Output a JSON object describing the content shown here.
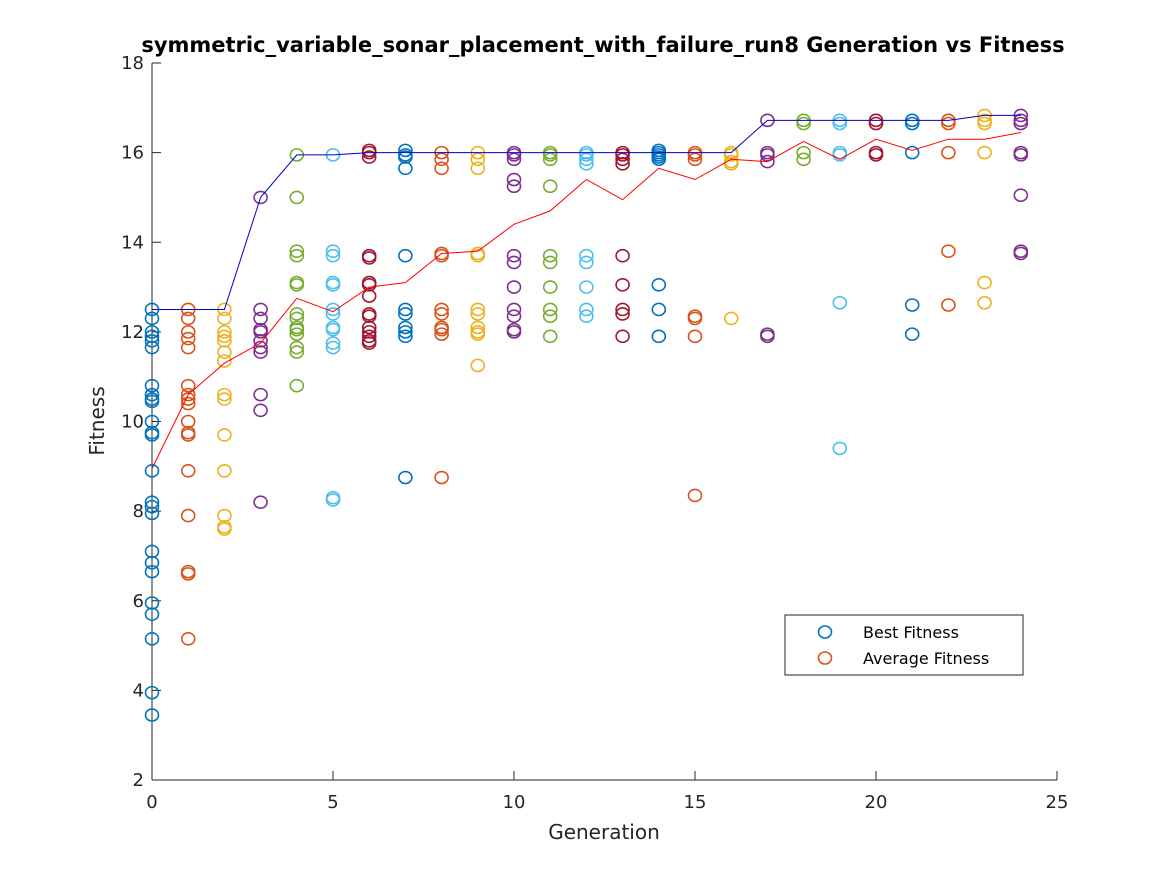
{
  "chart_data": {
    "type": "scatter",
    "title": "symmetric_variable_sonar_placement_with_failure_run8 Generation vs Fitness",
    "xlabel": "Generation",
    "ylabel": "Fitness",
    "xlim": [
      0,
      25
    ],
    "ylim": [
      2,
      18
    ],
    "xticks": [
      0,
      5,
      10,
      15,
      20,
      25
    ],
    "yticks": [
      2,
      4,
      6,
      8,
      10,
      12,
      14,
      16,
      18
    ],
    "grid": false,
    "legend_position": "bottom-right",
    "legend": [
      {
        "label": "Best Fitness",
        "color": "#0072BD"
      },
      {
        "label": "Average Fitness",
        "color": "#D95319"
      }
    ],
    "point_color_cycle": [
      "#0072BD",
      "#D95319",
      "#EDB120",
      "#7E2F8E",
      "#77AC30",
      "#4DBEEE",
      "#A2142F"
    ],
    "best_line": {
      "color": "#0000CC",
      "x": [
        0,
        1,
        2,
        3,
        4,
        5,
        6,
        7,
        8,
        9,
        10,
        11,
        12,
        13,
        14,
        15,
        16,
        17,
        18,
        19,
        20,
        21,
        22,
        23,
        24
      ],
      "y": [
        12.5,
        12.5,
        12.5,
        15.0,
        15.95,
        15.95,
        16.0,
        16.0,
        16.0,
        16.0,
        16.0,
        16.0,
        16.0,
        16.0,
        16.0,
        16.0,
        16.0,
        16.72,
        16.72,
        16.72,
        16.72,
        16.72,
        16.72,
        16.83,
        16.83
      ]
    },
    "average_line": {
      "color": "#FF0000",
      "x": [
        0,
        1,
        2,
        3,
        4,
        5,
        6,
        7,
        8,
        9,
        10,
        11,
        12,
        13,
        14,
        15,
        16,
        17,
        18,
        19,
        20,
        21,
        22,
        23,
        24
      ],
      "y": [
        8.95,
        10.6,
        11.3,
        11.75,
        12.75,
        12.45,
        13.0,
        13.1,
        13.75,
        13.8,
        14.4,
        14.7,
        15.4,
        14.95,
        15.65,
        15.4,
        15.85,
        15.8,
        16.25,
        15.85,
        16.3,
        16.05,
        16.3,
        16.3,
        16.45
      ]
    },
    "population": [
      {
        "generation": 0,
        "fitness": [
          12.5,
          12.3,
          12.0,
          11.9,
          11.8,
          11.65,
          10.8,
          10.6,
          10.5,
          10.45,
          10.0,
          9.75,
          9.7,
          8.9,
          8.2,
          8.1,
          7.95,
          7.1,
          6.85,
          6.65,
          5.95,
          5.7,
          5.15,
          3.95,
          3.45
        ]
      },
      {
        "generation": 1,
        "fitness": [
          12.5,
          12.3,
          12.0,
          11.85,
          11.65,
          10.8,
          10.6,
          10.5,
          10.4,
          10.0,
          9.75,
          9.7,
          8.9,
          7.9,
          6.65,
          6.6,
          5.15
        ]
      },
      {
        "generation": 2,
        "fitness": [
          12.5,
          12.3,
          12.0,
          11.9,
          11.8,
          11.55,
          11.35,
          10.6,
          10.5,
          9.7,
          8.9,
          7.9,
          7.65,
          7.6
        ]
      },
      {
        "generation": 3,
        "fitness": [
          15.0,
          12.5,
          12.3,
          12.05,
          12.0,
          11.8,
          11.65,
          11.55,
          10.6,
          10.25,
          8.2
        ]
      },
      {
        "generation": 4,
        "fitness": [
          15.95,
          15.0,
          13.8,
          13.7,
          13.1,
          13.05,
          12.4,
          12.3,
          12.1,
          12.05,
          11.95,
          11.65,
          11.55,
          10.8
        ]
      },
      {
        "generation": 5,
        "fitness": [
          15.95,
          13.8,
          13.7,
          13.1,
          13.05,
          12.5,
          12.4,
          12.1,
          12.05,
          11.75,
          11.65,
          8.3,
          8.25
        ]
      },
      {
        "generation": 6,
        "fitness": [
          16.05,
          16.0,
          15.9,
          13.7,
          13.65,
          13.1,
          13.05,
          12.8,
          12.4,
          12.35,
          12.1,
          12.0,
          11.9,
          11.8,
          11.75
        ]
      },
      {
        "generation": 7,
        "fitness": [
          16.05,
          15.95,
          15.9,
          15.65,
          13.7,
          12.5,
          12.4,
          12.1,
          12.0,
          11.9,
          8.75
        ]
      },
      {
        "generation": 8,
        "fitness": [
          16.0,
          15.85,
          15.65,
          13.75,
          13.7,
          12.5,
          12.4,
          12.1,
          12.05,
          11.95,
          8.75
        ]
      },
      {
        "generation": 9,
        "fitness": [
          16.0,
          15.85,
          15.65,
          13.75,
          13.7,
          12.5,
          12.4,
          12.1,
          12.0,
          11.95,
          11.25
        ]
      },
      {
        "generation": 10,
        "fitness": [
          16.0,
          15.95,
          15.85,
          15.4,
          15.25,
          13.7,
          13.55,
          13.0,
          12.5,
          12.35,
          12.05,
          12.0
        ]
      },
      {
        "generation": 11,
        "fitness": [
          16.0,
          15.95,
          15.85,
          15.25,
          13.7,
          13.55,
          13.0,
          12.5,
          12.35,
          11.9
        ]
      },
      {
        "generation": 12,
        "fitness": [
          16.0,
          15.95,
          15.85,
          15.75,
          13.7,
          13.55,
          13.0,
          12.5,
          12.35
        ]
      },
      {
        "generation": 13,
        "fitness": [
          16.0,
          15.95,
          15.85,
          15.75,
          13.7,
          13.05,
          12.5,
          12.4,
          11.9
        ]
      },
      {
        "generation": 14,
        "fitness": [
          16.05,
          16.0,
          15.95,
          15.9,
          15.85,
          13.05,
          12.5,
          11.9
        ]
      },
      {
        "generation": 15,
        "fitness": [
          16.0,
          15.95,
          15.85,
          12.35,
          12.3,
          11.9,
          8.35
        ]
      },
      {
        "generation": 16,
        "fitness": [
          16.0,
          15.95,
          15.8,
          15.75,
          12.3
        ]
      },
      {
        "generation": 17,
        "fitness": [
          16.72,
          16.0,
          15.95,
          15.8,
          11.95,
          11.9
        ]
      },
      {
        "generation": 18,
        "fitness": [
          16.72,
          16.65,
          16.0,
          15.85
        ]
      },
      {
        "generation": 19,
        "fitness": [
          16.72,
          16.65,
          16.0,
          15.95,
          12.65,
          9.4
        ]
      },
      {
        "generation": 20,
        "fitness": [
          16.72,
          16.65,
          16.0,
          15.95
        ]
      },
      {
        "generation": 21,
        "fitness": [
          16.72,
          16.65,
          16.0,
          12.6,
          11.95
        ]
      },
      {
        "generation": 22,
        "fitness": [
          16.72,
          16.65,
          16.0,
          13.8,
          12.6
        ]
      },
      {
        "generation": 23,
        "fitness": [
          16.83,
          16.72,
          16.65,
          16.0,
          13.1,
          12.65
        ]
      },
      {
        "generation": 24,
        "fitness": [
          16.83,
          16.72,
          16.65,
          16.0,
          15.95,
          15.05,
          13.8,
          13.75
        ]
      }
    ]
  }
}
